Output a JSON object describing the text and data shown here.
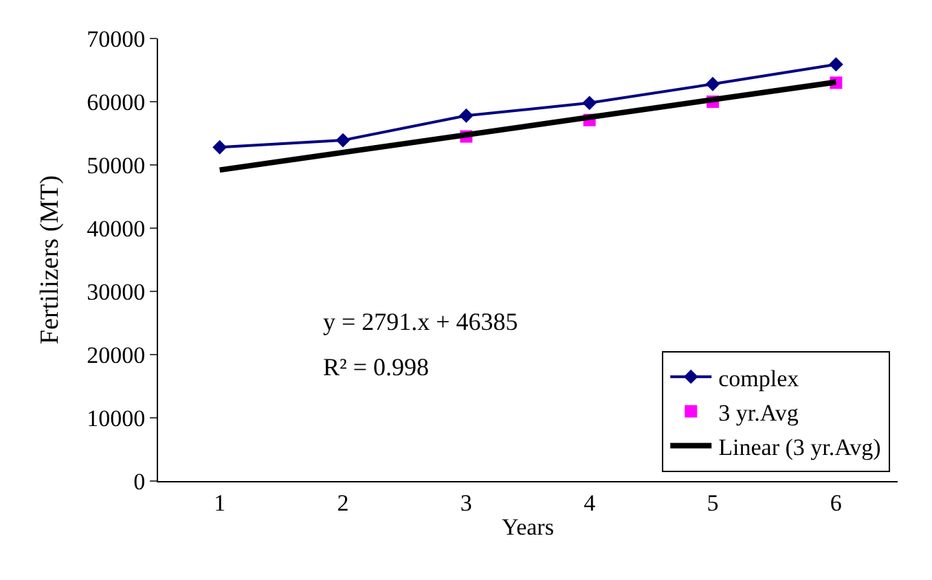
{
  "chart_data": {
    "type": "line",
    "xlabel": "Years",
    "ylabel": "Fertilizers (MT)",
    "x": [
      1,
      2,
      3,
      4,
      5,
      6
    ],
    "series": [
      {
        "name": "complex",
        "color": "#000080",
        "values": [
          52800,
          53900,
          57800,
          59800,
          62800,
          65900
        ],
        "marker": "diamond"
      },
      {
        "name": "3 yr.Avg",
        "type": "scatter",
        "color": "#ff00ff",
        "x": [
          3,
          4,
          5,
          6
        ],
        "values": [
          54500,
          57100,
          60000,
          63000
        ],
        "marker": "square"
      },
      {
        "name": "Linear (3 yr.Avg)",
        "color": "#000000",
        "x": [
          1,
          6
        ],
        "values": [
          49200,
          63100
        ],
        "marker": "none"
      }
    ],
    "xlim": [
      0.5,
      6.5
    ],
    "xticks": [
      1,
      2,
      3,
      4,
      5,
      6
    ],
    "ylim": [
      0,
      70000
    ],
    "yticks": [
      0,
      10000,
      20000,
      30000,
      40000,
      50000,
      60000,
      70000
    ],
    "annotations": [
      "y = 2791.x + 46385",
      "R² = 0.998"
    ],
    "legend": "bottom right"
  }
}
